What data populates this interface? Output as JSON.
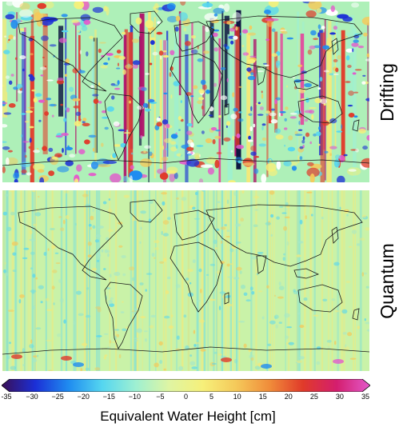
{
  "panels": [
    {
      "name": "drifting",
      "label": "Drifting",
      "pattern": "striped"
    },
    {
      "name": "quantum",
      "label": "Quantum",
      "pattern": "smooth"
    }
  ],
  "colorbar": {
    "ticks": [
      -35,
      -30,
      -25,
      -20,
      -15,
      -10,
      -5,
      0,
      5,
      10,
      15,
      20,
      25,
      30,
      35
    ],
    "tick_labels": [
      "-35",
      "−30",
      "−25",
      "−20",
      "−15",
      "−10",
      "−5",
      "0",
      "5",
      "10",
      "15",
      "20",
      "25",
      "30",
      "35"
    ],
    "label": "Equivalent Water Height [cm]",
    "colors": [
      "#3a0f55",
      "#1b2fd6",
      "#1f8cf0",
      "#55d6f0",
      "#9ef0d2",
      "#dff5a3",
      "#f6f07a",
      "#f5c95a",
      "#f08c3a",
      "#e03a2a",
      "#d41e6e",
      "#e35acb"
    ]
  }
}
